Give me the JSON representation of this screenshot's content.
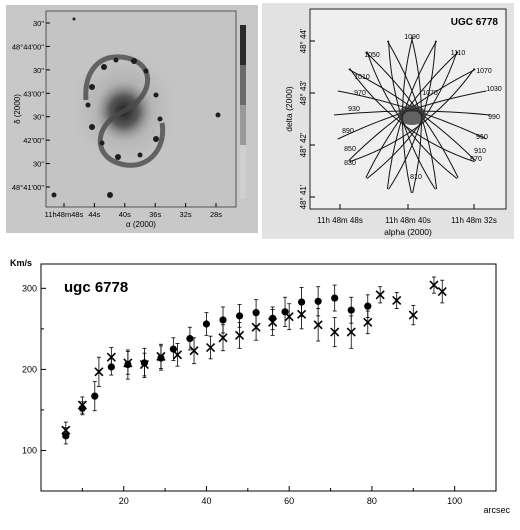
{
  "image_panel": {
    "y_tick_labels": [
      "30\"",
      "48°44'00\"",
      "30\"",
      "43'00\"",
      "30\"",
      "42'00\"",
      "30\"",
      "48°41'00\""
    ],
    "x_tick_labels": [
      "11h48m48s",
      "44s",
      "40s",
      "36s",
      "32s",
      "28s"
    ],
    "xlabel": "α (2000)",
    "ylabel": "δ (2000)"
  },
  "velocity_map": {
    "title": "UGC 6778",
    "xlabel": "alpha (2000)",
    "ylabel": "delta (2000)",
    "x_tick_labels": [
      "11h 48m 48s",
      "11h 48m 40s",
      "11h 48m 32s"
    ],
    "y_tick_labels": [
      "48° 44'",
      "48° 43'",
      "48° 42'",
      "48° 41'"
    ],
    "contour_labels": [
      "1090",
      "1110",
      "1070",
      "1050",
      "1030",
      "1010",
      "1070",
      "970",
      "990",
      "930",
      "950",
      "890",
      "910",
      "850",
      "870",
      "830",
      "810"
    ]
  },
  "chart_data": {
    "type": "scatter",
    "title": "ugc 6778",
    "ylabel": "Km/s",
    "xlabel": "arcsec",
    "xlim": [
      0,
      110
    ],
    "ylim": [
      50,
      330
    ],
    "x_ticks": [
      20,
      40,
      60,
      80,
      100
    ],
    "y_ticks": [
      100,
      200,
      300
    ],
    "grid": false,
    "series": [
      {
        "marker": "filled-circle",
        "x": [
          6,
          10,
          13,
          17,
          21,
          25,
          29,
          32,
          36,
          40,
          44,
          48,
          52,
          56,
          59,
          63,
          67,
          71,
          75,
          79
        ],
        "y": [
          118,
          152,
          167,
          203,
          206,
          208,
          214,
          225,
          238,
          256,
          261,
          266,
          270,
          263,
          271,
          283,
          284,
          288,
          273,
          278
        ],
        "yerr": [
          10,
          8,
          18,
          10,
          18,
          18,
          15,
          14,
          14,
          14,
          16,
          14,
          16,
          14,
          18,
          18,
          18,
          16,
          16,
          14
        ]
      },
      {
        "marker": "cross",
        "x": [
          6,
          10,
          14,
          17,
          21,
          25,
          29,
          33,
          37,
          41,
          44,
          48,
          52,
          56,
          60,
          63,
          67,
          71,
          75,
          79,
          82,
          86,
          90,
          95,
          97
        ],
        "y": [
          125,
          156,
          197,
          215,
          208,
          206,
          216,
          218,
          223,
          227,
          239,
          242,
          252,
          258,
          265,
          268,
          255,
          246,
          246,
          258,
          292,
          285,
          267,
          304,
          296
        ],
        "yerr": [
          10,
          10,
          18,
          12,
          14,
          14,
          15,
          14,
          16,
          14,
          16,
          16,
          16,
          16,
          16,
          18,
          20,
          18,
          20,
          14,
          10,
          10,
          12,
          10,
          14
        ]
      }
    ]
  }
}
